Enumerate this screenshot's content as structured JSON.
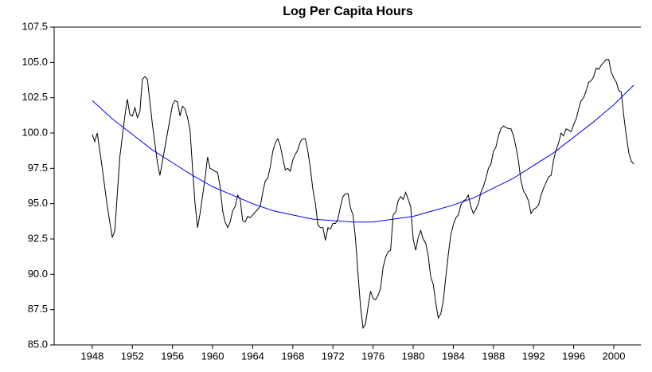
{
  "chart_data": {
    "type": "line",
    "title": "Log Per Capita Hours",
    "xlim": [
      1944.2,
      2002.7
    ],
    "xticks": [
      1948,
      1952,
      1956,
      1960,
      1964,
      1968,
      1972,
      1976,
      1980,
      1984,
      1988,
      1992,
      1996,
      2000
    ],
    "ylim": [
      85,
      107.5
    ],
    "yticks": [
      {
        "value": 85,
        "label": "85.0"
      },
      {
        "value": 87.5,
        "label": "87.5"
      },
      {
        "value": 90,
        "label": "90.0"
      },
      {
        "value": 92.5,
        "label": "92.5"
      },
      {
        "value": 95,
        "label": "95.0"
      },
      {
        "value": 97.5,
        "label": "97.5"
      },
      {
        "value": 100,
        "label": "100.0"
      },
      {
        "value": 102.5,
        "label": "102.5"
      },
      {
        "value": 105,
        "label": "105.0"
      },
      {
        "value": 107.5,
        "label": "107.5"
      }
    ],
    "grid": false,
    "series": [
      {
        "color": "#000000",
        "x": [
          1948,
          1948.25,
          1948.5,
          1949,
          1949.5,
          1950,
          1950.25,
          1950.75,
          1951.25,
          1951.5,
          1951.75,
          1952,
          1952.25,
          1952.5,
          1952.75,
          1953,
          1953.25,
          1953.5,
          1954,
          1954.5,
          1954.75,
          1955.25,
          1955.75,
          1956,
          1956.25,
          1956.5,
          1956.75,
          1957,
          1957.25,
          1957.5,
          1957.75,
          1958,
          1958.25,
          1958.5,
          1958.75,
          1959.25,
          1959.5,
          1959.75,
          1960,
          1960.25,
          1960.5,
          1960.75,
          1961,
          1961.25,
          1961.5,
          1961.75,
          1962,
          1962.25,
          1962.5,
          1962.75,
          1963,
          1963.25,
          1963.5,
          1963.75,
          1964,
          1964.25,
          1964.5,
          1964.75,
          1965,
          1965.25,
          1965.5,
          1965.75,
          1966,
          1966.25,
          1966.5,
          1966.75,
          1967,
          1967.25,
          1967.5,
          1967.75,
          1968,
          1968.25,
          1968.5,
          1968.75,
          1969,
          1969.25,
          1969.5,
          1969.75,
          1970,
          1970.25,
          1970.5,
          1970.75,
          1971,
          1971.25,
          1971.5,
          1971.75,
          1972,
          1972.25,
          1972.5,
          1972.75,
          1973,
          1973.25,
          1973.5,
          1973.75,
          1974,
          1974.25,
          1974.5,
          1974.75,
          1975,
          1975.25,
          1975.5,
          1975.75,
          1976,
          1976.25,
          1976.5,
          1976.75,
          1977,
          1977.25,
          1977.5,
          1977.75,
          1978,
          1978.25,
          1978.5,
          1978.75,
          1979,
          1979.25,
          1979.5,
          1979.75,
          1980,
          1980.25,
          1980.5,
          1980.75,
          1981,
          1981.25,
          1981.5,
          1981.75,
          1982,
          1982.25,
          1982.5,
          1982.75,
          1983,
          1983.25,
          1983.5,
          1983.75,
          1984,
          1984.25,
          1984.5,
          1984.75,
          1985,
          1985.25,
          1985.5,
          1985.75,
          1986,
          1986.25,
          1986.5,
          1986.75,
          1987,
          1987.25,
          1987.5,
          1987.75,
          1988,
          1988.25,
          1988.5,
          1988.75,
          1989,
          1989.25,
          1989.5,
          1989.75,
          1990,
          1990.25,
          1990.5,
          1990.75,
          1991,
          1991.25,
          1991.5,
          1991.75,
          1992,
          1992.25,
          1992.5,
          1992.75,
          1993,
          1993.25,
          1993.5,
          1993.75,
          1994,
          1994.25,
          1994.5,
          1994.75,
          1995,
          1995.25,
          1995.5,
          1995.75,
          1996,
          1996.25,
          1996.5,
          1996.75,
          1997,
          1997.25,
          1997.5,
          1997.75,
          1998,
          1998.25,
          1998.5,
          1998.75,
          1999,
          1999.25,
          1999.5,
          1999.75,
          2000,
          2000.25,
          2000.5,
          2000.75,
          2001,
          2001.25,
          2001.5,
          2001.75,
          2002
        ],
        "values": [
          99.9,
          99.4,
          100.0,
          97.5,
          94.8,
          92.6,
          93.1,
          98.3,
          101.2,
          102.4,
          101.3,
          101.2,
          101.8,
          101.1,
          101.5,
          103.8,
          104.0,
          103.8,
          100.6,
          97.9,
          97.0,
          99.0,
          101.0,
          102.0,
          102.3,
          102.2,
          101.2,
          101.9,
          101.7,
          101.1,
          100.2,
          97.5,
          95.0,
          93.3,
          94.3,
          96.8,
          98.3,
          97.5,
          97.4,
          97.3,
          97.2,
          96.2,
          94.5,
          93.7,
          93.3,
          93.7,
          94.5,
          94.8,
          95.6,
          95.3,
          93.8,
          93.7,
          94.1,
          94.0,
          94.2,
          94.4,
          94.6,
          94.8,
          95.8,
          96.6,
          96.8,
          97.6,
          98.7,
          99.3,
          99.6,
          99.1,
          98.2,
          97.4,
          97.5,
          97.3,
          98.1,
          98.5,
          98.8,
          99.4,
          99.6,
          99.6,
          98.7,
          97.5,
          96.0,
          95.0,
          93.5,
          93.3,
          93.3,
          92.4,
          93.3,
          93.2,
          93.6,
          93.6,
          93.9,
          94.8,
          95.5,
          95.7,
          95.7,
          94.7,
          94.2,
          92.5,
          90.0,
          87.7,
          86.2,
          86.5,
          87.7,
          88.8,
          88.3,
          88.2,
          88.5,
          89.0,
          90.5,
          91.2,
          91.6,
          91.7,
          94.2,
          94.4,
          95.2,
          95.5,
          95.3,
          95.8,
          95.3,
          94.8,
          92.5,
          91.7,
          92.6,
          93.1,
          92.5,
          92.2,
          91.3,
          89.8,
          89.3,
          88.0,
          86.9,
          87.2,
          88.1,
          89.8,
          91.4,
          92.8,
          93.5,
          94.0,
          94.2,
          94.9,
          95.2,
          95.3,
          95.6,
          94.8,
          94.3,
          94.6,
          95.0,
          95.8,
          96.2,
          96.8,
          97.5,
          97.8,
          98.7,
          99.0,
          99.8,
          100.3,
          100.5,
          100.4,
          100.3,
          100.3,
          99.8,
          99.0,
          98.0,
          96.6,
          95.9,
          95.6,
          95.2,
          94.3,
          94.6,
          94.7,
          94.9,
          95.6,
          96.1,
          96.5,
          96.9,
          97.0,
          98.1,
          98.8,
          99.3,
          100.0,
          99.8,
          100.3,
          100.2,
          100.1,
          100.6,
          101.0,
          101.7,
          102.3,
          102.5,
          103.0,
          103.6,
          103.7,
          104.0,
          104.6,
          104.5,
          104.8,
          105.0,
          105.2,
          105.2,
          104.3,
          103.9,
          103.6,
          103.0,
          102.9,
          101.2,
          99.8,
          98.6,
          98.0,
          97.8
        ]
      },
      {
        "color": "#0000ff",
        "x": [
          1948,
          1950,
          1952,
          1954,
          1956,
          1958,
          1960,
          1962,
          1964,
          1966,
          1968,
          1970,
          1972,
          1974,
          1976,
          1978,
          1980,
          1982,
          1984,
          1986,
          1988,
          1990,
          1992,
          1994,
          1996,
          1998,
          2000,
          2002
        ],
        "values": [
          102.3,
          101.0,
          99.9,
          98.8,
          97.9,
          97.0,
          96.2,
          95.6,
          95.0,
          94.5,
          94.2,
          93.9,
          93.8,
          93.7,
          93.7,
          93.9,
          94.1,
          94.5,
          94.9,
          95.4,
          96.1,
          96.8,
          97.7,
          98.6,
          99.7,
          100.8,
          102.0,
          103.4
        ]
      }
    ]
  }
}
